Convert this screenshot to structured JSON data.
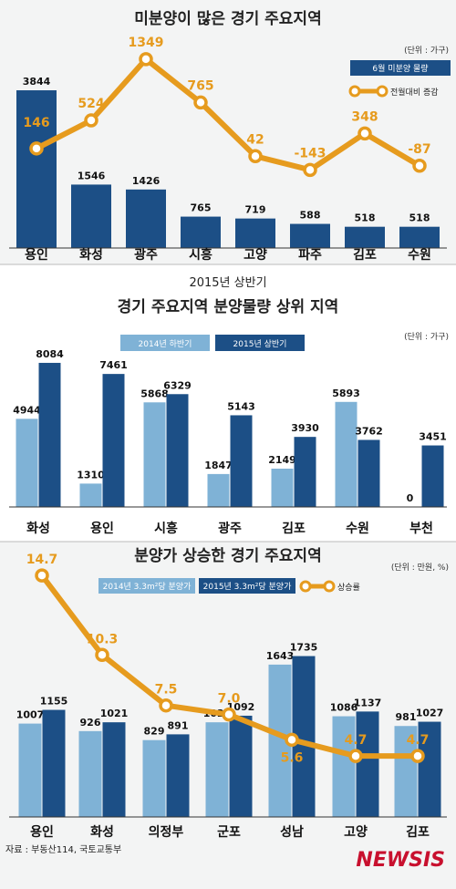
{
  "chart_data": [
    {
      "type": "bar",
      "title": "미분양이 많은 경기 주요지역",
      "unit": "(단위 : 가구)",
      "categories": [
        "용인",
        "화성",
        "광주",
        "시흥",
        "고양",
        "파주",
        "김포",
        "수원"
      ],
      "series": [
        {
          "name": "6월 미분양 물량",
          "type": "bar",
          "values": [
            3844,
            1546,
            1426,
            765,
            719,
            588,
            518,
            518
          ]
        },
        {
          "name": "전월대비 증감",
          "type": "line",
          "values": [
            146,
            524,
            1349,
            765,
            42,
            -143,
            348,
            -87
          ]
        }
      ],
      "colors": {
        "bar": "#1c4f86",
        "line": "#e69b1e"
      }
    },
    {
      "type": "bar",
      "subtitle": "2015년 상반기",
      "title": "경기 주요지역 분양물량 상위 지역",
      "unit": "(단위 : 가구)",
      "categories": [
        "화성",
        "용인",
        "시흥",
        "광주",
        "김포",
        "수원",
        "부천"
      ],
      "series": [
        {
          "name": "2014년 하반기",
          "values": [
            4944,
            1310,
            5868,
            1847,
            2149,
            5893,
            0
          ]
        },
        {
          "name": "2015년 상반기",
          "values": [
            8084,
            7461,
            6329,
            5143,
            3930,
            3762,
            3451
          ]
        }
      ],
      "colors": {
        "s1": "#7fb2d6",
        "s2": "#1c4f86"
      }
    },
    {
      "type": "bar",
      "title": "분양가 상승한 경기 주요지역",
      "unit": "(단위 : 만원, %)",
      "categories": [
        "용인",
        "화성",
        "의정부",
        "군포",
        "성남",
        "고양",
        "김포"
      ],
      "series": [
        {
          "name": "2014년 3.3m²당 분양가",
          "type": "bar",
          "values": [
            1007,
            926,
            829,
            1021,
            1643,
            1086,
            981
          ]
        },
        {
          "name": "2015년 3.3m²당 분양가",
          "type": "bar",
          "values": [
            1155,
            1021,
            891,
            1092,
            1735,
            1137,
            1027
          ]
        },
        {
          "name": "상승률",
          "type": "line",
          "values": [
            14.7,
            10.3,
            7.5,
            7.0,
            5.6,
            4.7,
            4.7
          ]
        }
      ],
      "colors": {
        "s1": "#7fb2d6",
        "s2": "#1c4f86",
        "line": "#e69b1e"
      }
    }
  ],
  "footer": {
    "source": "자료 : 부동산114, 국토교통부",
    "brand": "NEWSIS"
  }
}
